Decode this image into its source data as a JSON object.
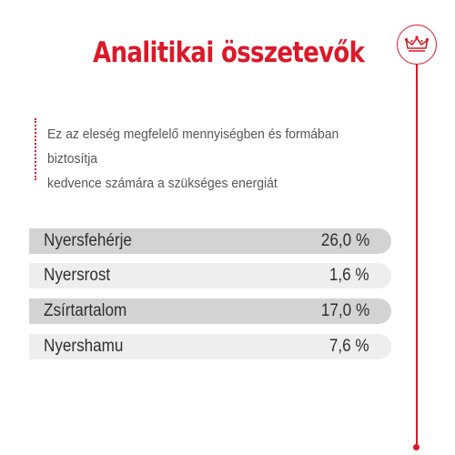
{
  "header": {
    "title": "Analitikai összetevők",
    "logo_icon": "crown-icon",
    "accent_color": "#d91a2a"
  },
  "description": {
    "line1": "Ez az eleség megfelelő mennyiségben és formában biztosítja",
    "line2": "kedvence számára a szükséges energiát"
  },
  "nutrients": [
    {
      "name": "Nyersfehérje",
      "value": "26,0 %"
    },
    {
      "name": "Nyersrost",
      "value": "1,6 %"
    },
    {
      "name": "Zsírtartalom",
      "value": "17,0 %"
    },
    {
      "name": "Nyershamu",
      "value": "7,6 %"
    }
  ]
}
